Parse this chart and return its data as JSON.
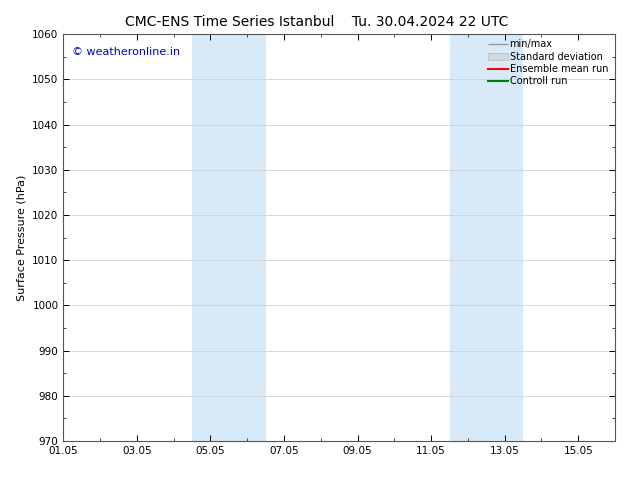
{
  "title_left": "CMC-ENS Time Series Istanbul",
  "title_right": "Tu. 30.04.2024 22 UTC",
  "ylabel": "Surface Pressure (hPa)",
  "ylim": [
    970,
    1060
  ],
  "yticks": [
    970,
    980,
    990,
    1000,
    1010,
    1020,
    1030,
    1040,
    1050,
    1060
  ],
  "xlim": [
    0,
    15
  ],
  "xtick_labels": [
    "01.05",
    "03.05",
    "05.05",
    "07.05",
    "09.05",
    "11.05",
    "13.05",
    "15.05"
  ],
  "xtick_positions": [
    0,
    2,
    4,
    6,
    8,
    10,
    12,
    14
  ],
  "shaded_bands": [
    {
      "x_start": 3.5,
      "x_end": 5.5,
      "color": "#d8eaf8"
    },
    {
      "x_start": 10.5,
      "x_end": 12.5,
      "color": "#d8eaf8"
    }
  ],
  "watermark_text": "© weatheronline.in",
  "watermark_color": "#0000cc",
  "watermark_fontsize": 8,
  "legend_labels": [
    "min/max",
    "Standard deviation",
    "Ensemble mean run",
    "Controll run"
  ],
  "legend_colors_line": [
    "#999999",
    "#cccccc",
    "#ff0000",
    "#008000"
  ],
  "background_color": "#ffffff",
  "plot_bg_color": "#f5f5f5",
  "grid_color": "#cccccc",
  "title_fontsize": 10,
  "axis_fontsize": 7.5,
  "ylabel_fontsize": 8
}
